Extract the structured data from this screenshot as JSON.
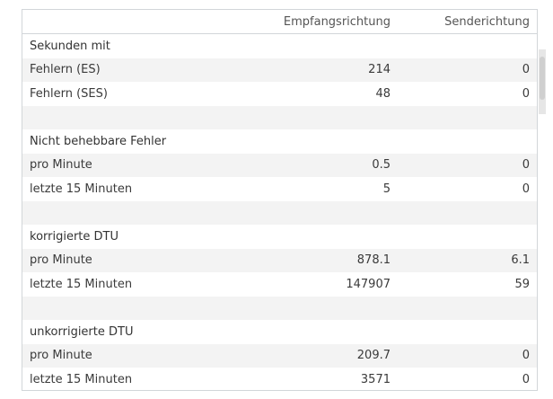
{
  "table": {
    "columns": [
      "",
      "Empfangsrichtung",
      "Senderichtung"
    ],
    "rows": [
      {
        "kind": "section",
        "label": "Sekunden mit",
        "recv": "",
        "send": ""
      },
      {
        "kind": "data",
        "label": "Fehlern (ES)",
        "recv": "214",
        "send": "0"
      },
      {
        "kind": "data",
        "label": "Fehlern (SES)",
        "recv": "48",
        "send": "0"
      },
      {
        "kind": "spacer",
        "label": "",
        "recv": "",
        "send": ""
      },
      {
        "kind": "section",
        "label": "Nicht behebbare Fehler",
        "recv": "",
        "send": ""
      },
      {
        "kind": "data",
        "label": "pro Minute",
        "recv": "0.5",
        "send": "0"
      },
      {
        "kind": "data",
        "label": "letzte 15 Minuten",
        "recv": "5",
        "send": "0"
      },
      {
        "kind": "spacer",
        "label": "",
        "recv": "",
        "send": ""
      },
      {
        "kind": "section",
        "label": "korrigierte DTU",
        "recv": "",
        "send": ""
      },
      {
        "kind": "data",
        "label": "pro Minute",
        "recv": "878.1",
        "send": "6.1"
      },
      {
        "kind": "data",
        "label": "letzte 15 Minuten",
        "recv": "147907",
        "send": "59"
      },
      {
        "kind": "spacer",
        "label": "",
        "recv": "",
        "send": ""
      },
      {
        "kind": "section",
        "label": "unkorrigierte DTU",
        "recv": "",
        "send": ""
      },
      {
        "kind": "data",
        "label": "pro Minute",
        "recv": "209.7",
        "send": "0"
      },
      {
        "kind": "data",
        "label": "letzte 15 Minuten",
        "recv": "3571",
        "send": "0"
      }
    ]
  }
}
